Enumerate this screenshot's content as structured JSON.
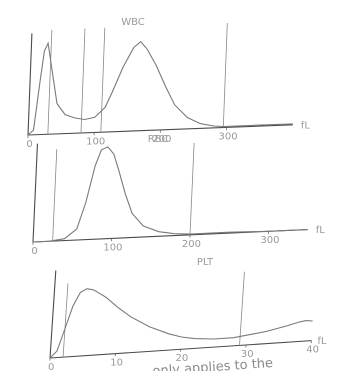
{
  "chart_data": [
    {
      "type": "line",
      "title": "WBC",
      "unit": "fL",
      "xlim": [
        0,
        400
      ],
      "ticks": [
        "0",
        "100",
        "200",
        "300"
      ],
      "discriminators": [
        30,
        80,
        110,
        295
      ],
      "x": [
        0,
        8,
        15,
        20,
        25,
        32,
        42,
        55,
        70,
        85,
        100,
        115,
        125,
        140,
        155,
        165,
        175,
        190,
        205,
        220,
        240,
        260,
        280,
        295,
        310,
        350,
        400
      ],
      "values": [
        0,
        5,
        55,
        88,
        96,
        70,
        32,
        20,
        16,
        14,
        16,
        26,
        42,
        68,
        88,
        94,
        86,
        68,
        46,
        26,
        12,
        5,
        2,
        1,
        1,
        1,
        1
      ]
    },
    {
      "type": "line",
      "title": "RBC",
      "unit": "fL",
      "xlim": [
        0,
        350
      ],
      "ticks": [
        "0",
        "100",
        "200",
        "300"
      ],
      "discriminators": [
        25,
        200
      ],
      "x": [
        0,
        20,
        40,
        55,
        65,
        75,
        82,
        90,
        98,
        105,
        115,
        125,
        140,
        160,
        180,
        200,
        250,
        300,
        350
      ],
      "values": [
        0,
        0,
        2,
        12,
        40,
        80,
        97,
        100,
        92,
        75,
        48,
        26,
        12,
        5,
        2,
        1,
        1,
        0,
        0
      ]
    },
    {
      "type": "line",
      "title": "PLT",
      "unit": "fL",
      "xlim": [
        0,
        40
      ],
      "ticks": [
        "0",
        "10",
        "20",
        "30",
        "40"
      ],
      "discriminators": [
        2,
        29
      ],
      "x": [
        0,
        1,
        2,
        3,
        4,
        5,
        6,
        8,
        10,
        12,
        15,
        18,
        20,
        22,
        25,
        28,
        30,
        33,
        36,
        38,
        39,
        40
      ],
      "values": [
        0,
        8,
        35,
        62,
        78,
        82,
        80,
        70,
        56,
        44,
        30,
        20,
        15,
        12,
        10,
        10,
        12,
        15,
        20,
        24,
        25,
        24
      ]
    }
  ],
  "footer_text": "...only applies to the"
}
